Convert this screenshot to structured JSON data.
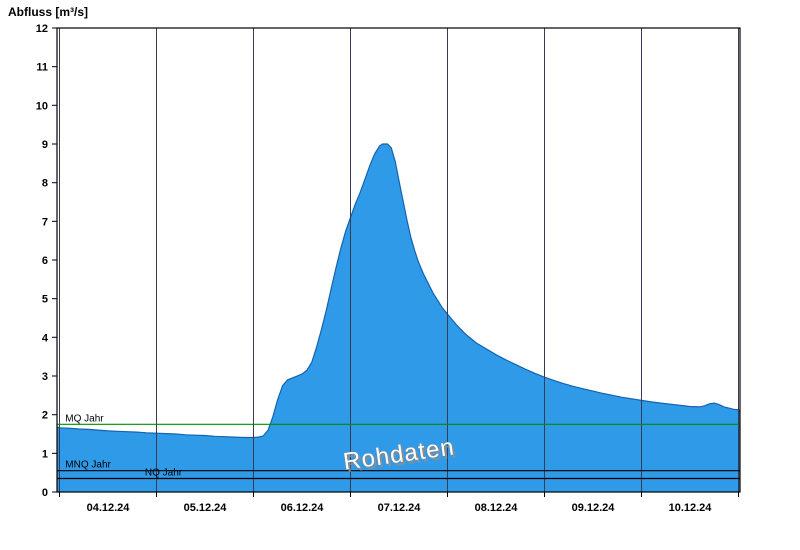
{
  "chart_data": {
    "type": "area",
    "title": "Abfluss [m³/s]",
    "watermark": "Rohdaten",
    "ylim": [
      0,
      12
    ],
    "yticks": [
      0,
      1,
      2,
      3,
      4,
      5,
      6,
      7,
      8,
      9,
      10,
      11,
      12
    ],
    "xlim_days": [
      -0.026,
      7.015
    ],
    "xticks": [
      {
        "label": "04.12.24",
        "day": 0.5
      },
      {
        "label": "05.12.24",
        "day": 1.5
      },
      {
        "label": "06.12.24",
        "day": 2.5
      },
      {
        "label": "07.12.24",
        "day": 3.5
      },
      {
        "label": "08.12.24",
        "day": 4.5
      },
      {
        "label": "09.12.24",
        "day": 5.5
      },
      {
        "label": "10.12.24",
        "day": 6.5
      }
    ],
    "gridlines_days": [
      0,
      1,
      2,
      3,
      4,
      5,
      6,
      7
    ],
    "gridline_color": "#3a3a55",
    "reference_lines": [
      {
        "label": "MQ Jahr",
        "value": 1.75,
        "color": "#008f00",
        "label_x_day": 0.06
      },
      {
        "label": "MNQ Jahr",
        "value": 0.55,
        "color": "#000000",
        "label_x_day": 0.06
      },
      {
        "label": "NQ Jahr",
        "value": 0.35,
        "color": "#000000",
        "label_x_day": 0.88
      }
    ],
    "series": [
      {
        "name": "Abfluss Rohdaten",
        "color_fill": "#2f9ae8",
        "color_line": "#1563ae",
        "points": [
          [
            -0.026,
            1.68
          ],
          [
            0.0,
            1.66
          ],
          [
            0.1,
            1.65
          ],
          [
            0.2,
            1.63
          ],
          [
            0.3,
            1.62
          ],
          [
            0.4,
            1.6
          ],
          [
            0.5,
            1.58
          ],
          [
            0.6,
            1.57
          ],
          [
            0.7,
            1.56
          ],
          [
            0.8,
            1.55
          ],
          [
            0.9,
            1.53
          ],
          [
            1.0,
            1.52
          ],
          [
            1.1,
            1.51
          ],
          [
            1.2,
            1.5
          ],
          [
            1.3,
            1.48
          ],
          [
            1.4,
            1.47
          ],
          [
            1.5,
            1.46
          ],
          [
            1.6,
            1.44
          ],
          [
            1.7,
            1.43
          ],
          [
            1.8,
            1.42
          ],
          [
            1.9,
            1.41
          ],
          [
            2.0,
            1.41
          ],
          [
            2.05,
            1.42
          ],
          [
            2.1,
            1.45
          ],
          [
            2.15,
            1.6
          ],
          [
            2.2,
            1.95
          ],
          [
            2.25,
            2.4
          ],
          [
            2.3,
            2.75
          ],
          [
            2.35,
            2.9
          ],
          [
            2.4,
            2.95
          ],
          [
            2.45,
            3.0
          ],
          [
            2.5,
            3.05
          ],
          [
            2.55,
            3.15
          ],
          [
            2.6,
            3.35
          ],
          [
            2.65,
            3.75
          ],
          [
            2.7,
            4.2
          ],
          [
            2.75,
            4.7
          ],
          [
            2.8,
            5.25
          ],
          [
            2.85,
            5.8
          ],
          [
            2.9,
            6.3
          ],
          [
            2.95,
            6.75
          ],
          [
            3.0,
            7.1
          ],
          [
            3.05,
            7.45
          ],
          [
            3.1,
            7.75
          ],
          [
            3.15,
            8.1
          ],
          [
            3.2,
            8.45
          ],
          [
            3.25,
            8.75
          ],
          [
            3.3,
            8.95
          ],
          [
            3.33,
            9.0
          ],
          [
            3.38,
            9.0
          ],
          [
            3.42,
            8.9
          ],
          [
            3.46,
            8.55
          ],
          [
            3.5,
            8.05
          ],
          [
            3.54,
            7.55
          ],
          [
            3.58,
            7.05
          ],
          [
            3.62,
            6.6
          ],
          [
            3.66,
            6.25
          ],
          [
            3.7,
            5.95
          ],
          [
            3.75,
            5.65
          ],
          [
            3.8,
            5.4
          ],
          [
            3.85,
            5.15
          ],
          [
            3.9,
            4.95
          ],
          [
            3.95,
            4.75
          ],
          [
            4.0,
            4.6
          ],
          [
            4.1,
            4.3
          ],
          [
            4.2,
            4.05
          ],
          [
            4.3,
            3.85
          ],
          [
            4.4,
            3.7
          ],
          [
            4.5,
            3.55
          ],
          [
            4.6,
            3.42
          ],
          [
            4.7,
            3.3
          ],
          [
            4.8,
            3.18
          ],
          [
            4.9,
            3.07
          ],
          [
            5.0,
            2.97
          ],
          [
            5.1,
            2.88
          ],
          [
            5.2,
            2.8
          ],
          [
            5.3,
            2.73
          ],
          [
            5.4,
            2.67
          ],
          [
            5.5,
            2.61
          ],
          [
            5.6,
            2.55
          ],
          [
            5.7,
            2.5
          ],
          [
            5.8,
            2.45
          ],
          [
            5.9,
            2.41
          ],
          [
            6.0,
            2.37
          ],
          [
            6.1,
            2.33
          ],
          [
            6.2,
            2.3
          ],
          [
            6.3,
            2.27
          ],
          [
            6.4,
            2.24
          ],
          [
            6.5,
            2.21
          ],
          [
            6.6,
            2.2
          ],
          [
            6.65,
            2.23
          ],
          [
            6.7,
            2.28
          ],
          [
            6.75,
            2.3
          ],
          [
            6.8,
            2.26
          ],
          [
            6.85,
            2.2
          ],
          [
            6.9,
            2.17
          ],
          [
            6.95,
            2.14
          ],
          [
            7.015,
            2.12
          ]
        ]
      }
    ]
  }
}
